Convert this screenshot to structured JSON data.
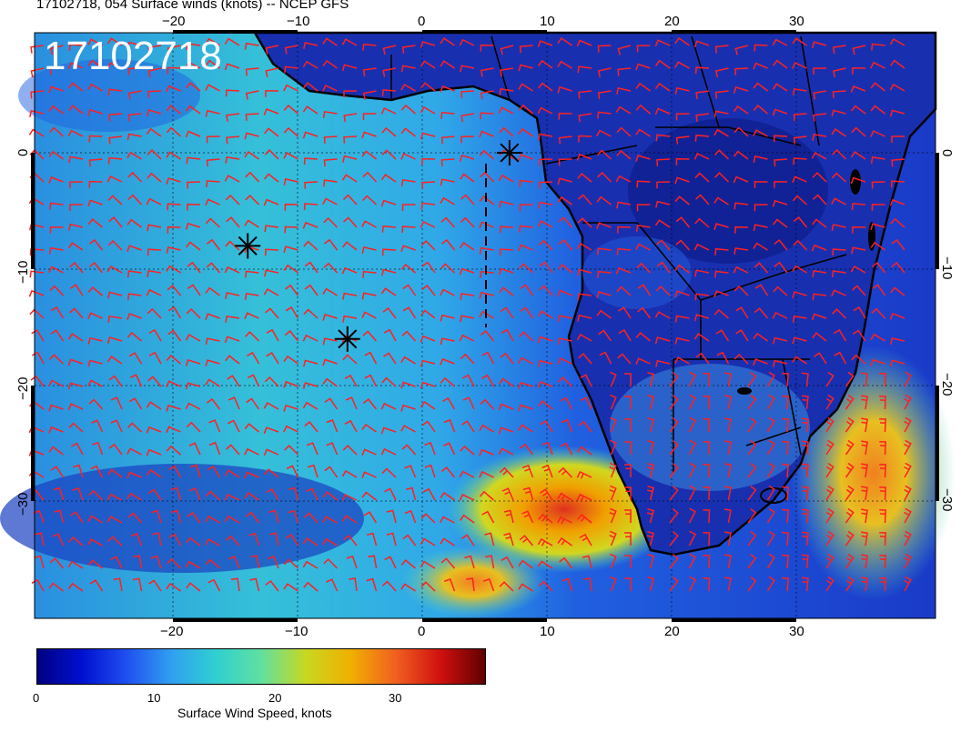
{
  "title": "17102718, 054 Surface winds (knots) -- NCEP GFS",
  "stamp": "17102718",
  "axes": {
    "lon_ticks": [
      "−20",
      "−10",
      "0",
      "10",
      "20",
      "30"
    ],
    "lat_ticks": [
      "0",
      "−10",
      "−20",
      "−30"
    ]
  },
  "colorbar": {
    "label": "Surface Wind Speed, knots",
    "ticks": [
      "0",
      "10",
      "20",
      "30"
    ],
    "colors": [
      "#000080",
      "#0010d0",
      "#2050f0",
      "#30a0f0",
      "#30d0d0",
      "#60e0a0",
      "#c8d820",
      "#f0b000",
      "#f06020",
      "#d01010",
      "#600000"
    ]
  },
  "colors": {
    "barb": "#ff2020",
    "coast": "#000000"
  },
  "markers": [
    {
      "lon": 7,
      "lat": 0,
      "name": "station-marker"
    },
    {
      "lon": -14,
      "lat": -8,
      "name": "station-marker"
    },
    {
      "lon": -6,
      "lat": -16,
      "name": "station-marker"
    }
  ]
}
